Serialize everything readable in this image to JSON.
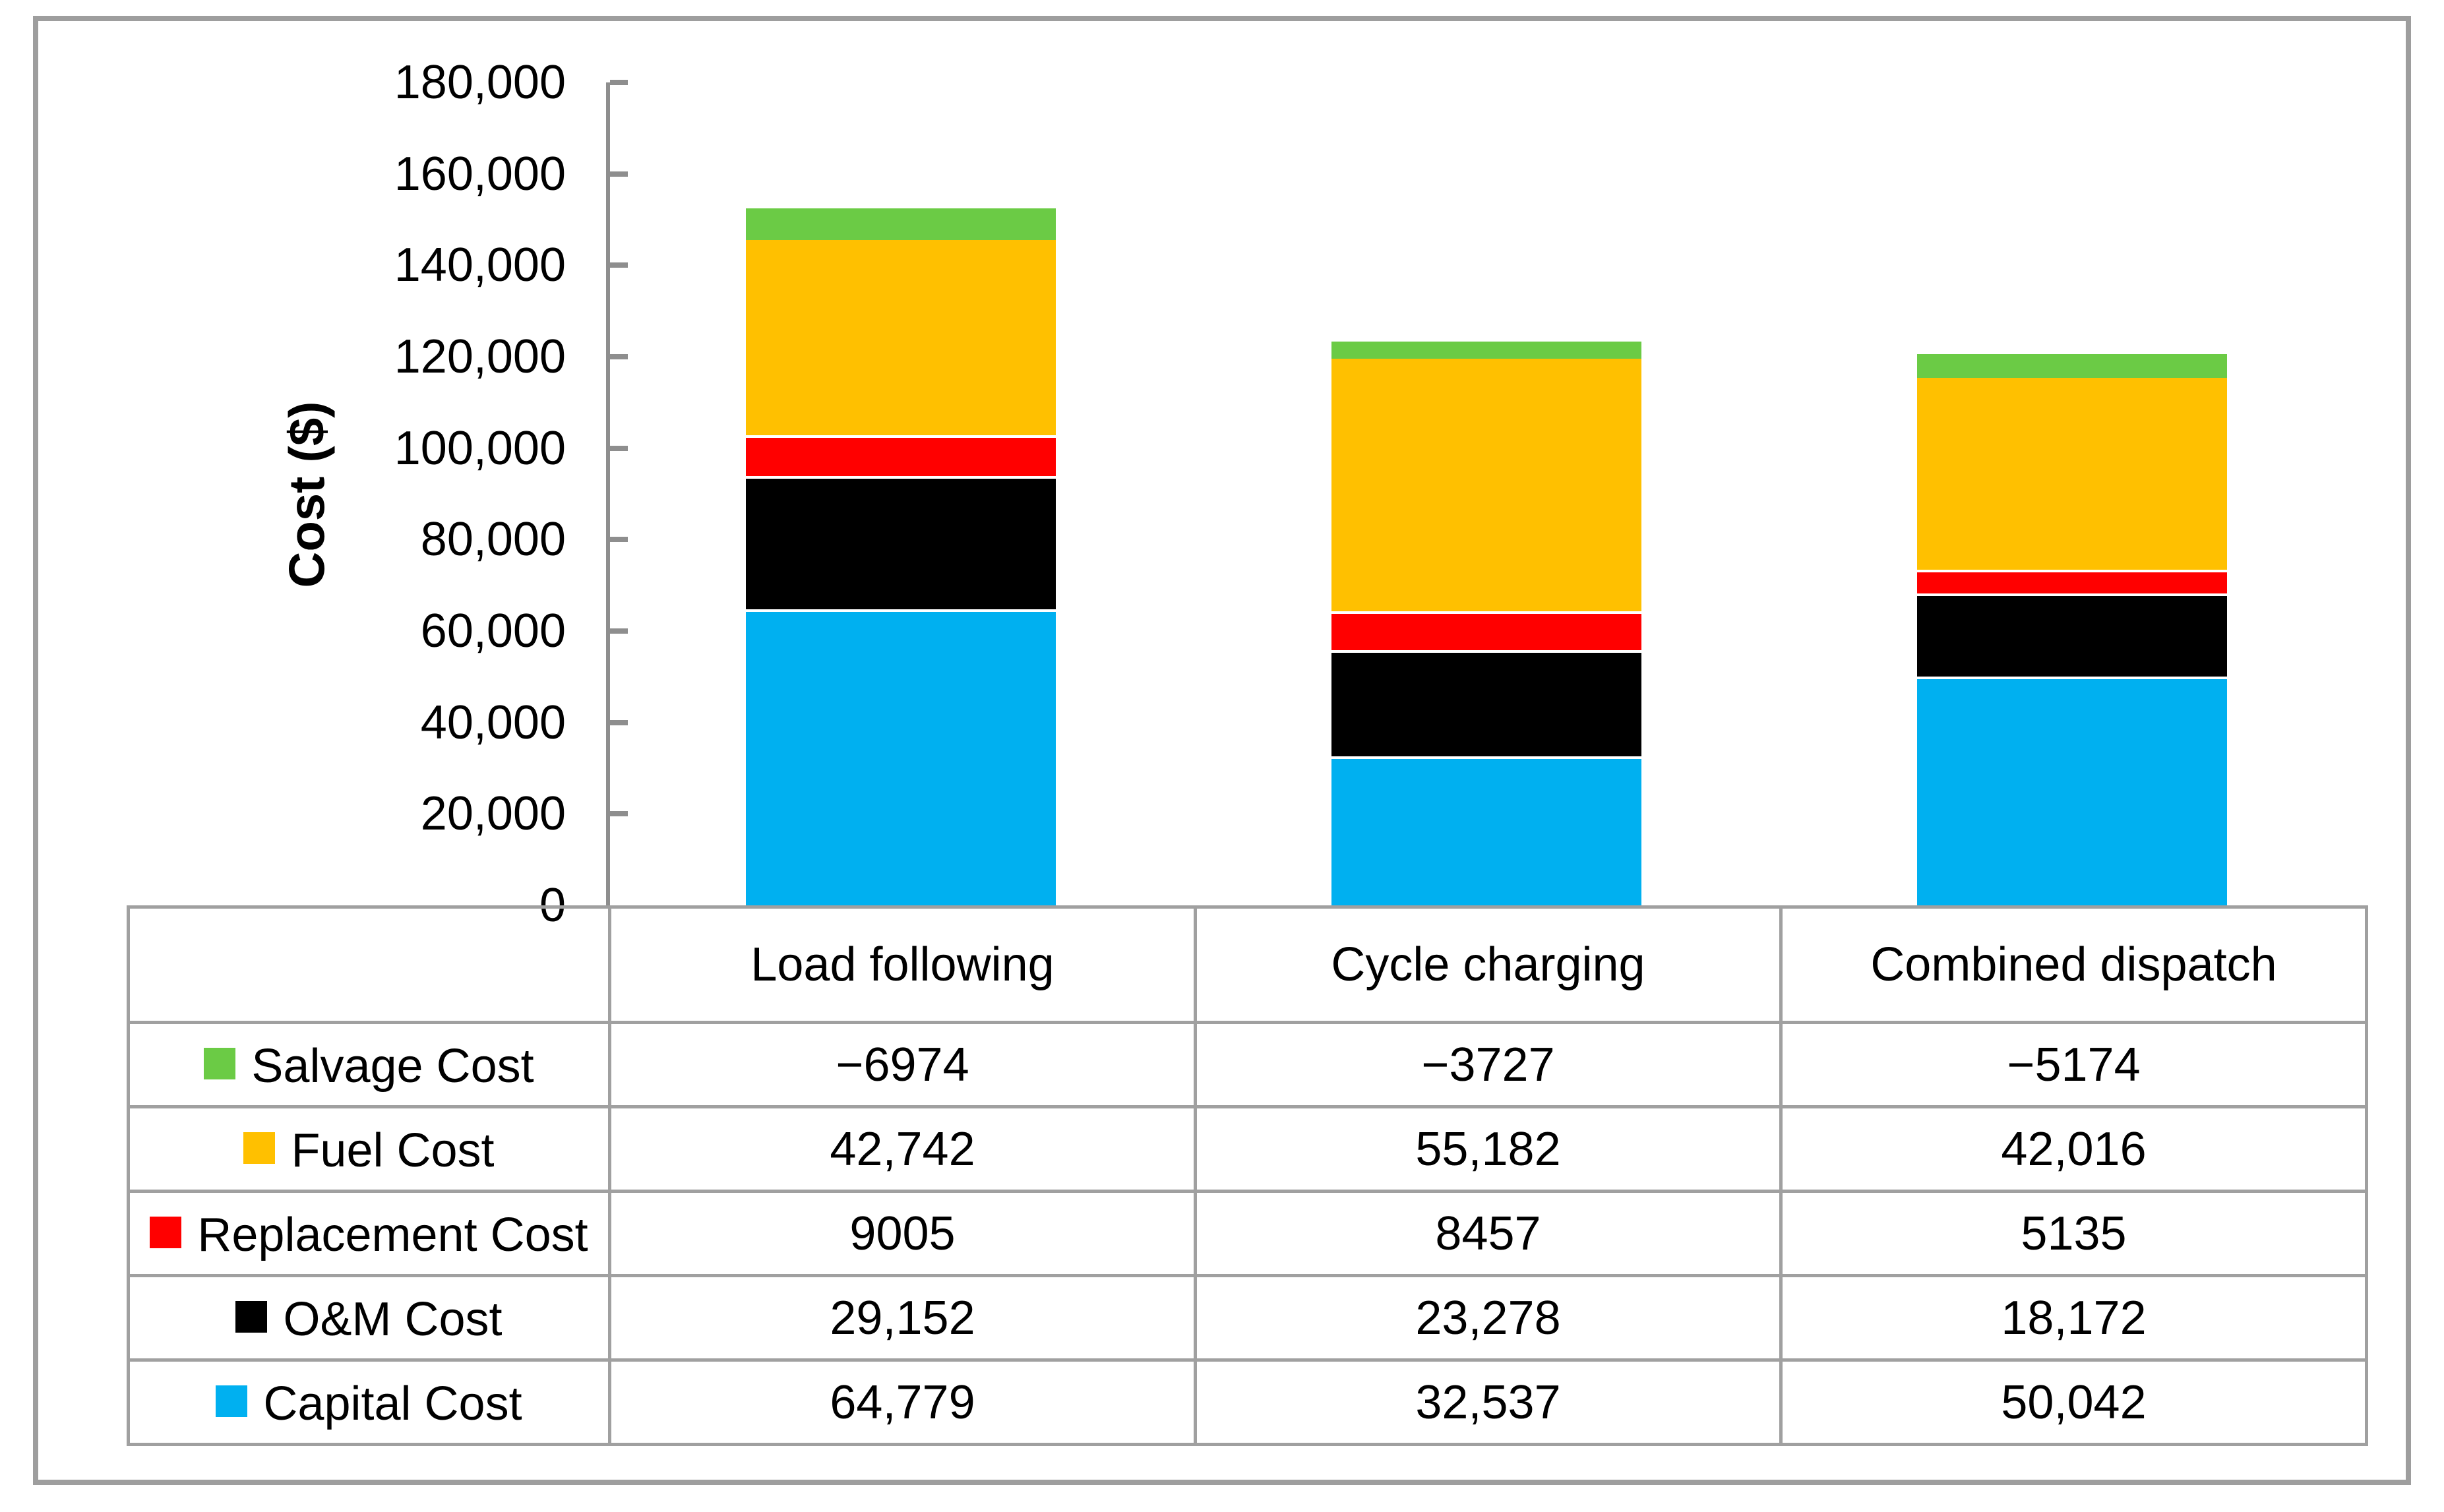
{
  "figure": {
    "background": "#FFFFFF",
    "frame_color": "#9E9E9E",
    "axis_color": "#8E8E8E",
    "table_border_color": "#A0A0A0",
    "text_color": "#000000"
  },
  "chart_data": {
    "type": "bar",
    "subtype": "stacked-column",
    "title": "",
    "xlabel": "",
    "ylabel": "Cost ($)",
    "ylim": [
      0,
      180000
    ],
    "ytick_step": 20000,
    "ytick_labels": [
      "0",
      "20,000",
      "40,000",
      "60,000",
      "80,000",
      "100,000",
      "120,000",
      "140,000",
      "160,000",
      "180,000"
    ],
    "grid": false,
    "legend_position": "table-left-column",
    "categories": [
      "Load following",
      "Cycle charging",
      "Combined dispatch"
    ],
    "series": [
      {
        "name": "Capital Cost",
        "color": "#00B0F0",
        "values": [
          64779,
          32537,
          50042
        ],
        "display": [
          "64,779",
          "32,537",
          "50,042"
        ]
      },
      {
        "name": "O&M Cost",
        "color": "#000000",
        "values": [
          29152,
          23278,
          18172
        ],
        "display": [
          "29,152",
          "23,278",
          "18,172"
        ]
      },
      {
        "name": "Replacement Cost",
        "color": "#FF0000",
        "values": [
          9005,
          8457,
          5135
        ],
        "display": [
          "9005",
          "8457",
          "5135"
        ]
      },
      {
        "name": "Fuel Cost",
        "color": "#FFC000",
        "values": [
          42742,
          55182,
          42016
        ],
        "display": [
          "42,742",
          "55,182",
          "42,016"
        ]
      },
      {
        "name": "Salvage Cost",
        "color": "#6BCB45",
        "values": [
          -6974,
          -3727,
          -5174
        ],
        "display": [
          "−6974",
          "−3727",
          "−5174"
        ]
      }
    ],
    "stacking_note": "segments stacked bottom-to-top: Capital, O&M, Replacement, Fuel, Salvage (absolute value of negative salvage drawn on top)"
  }
}
